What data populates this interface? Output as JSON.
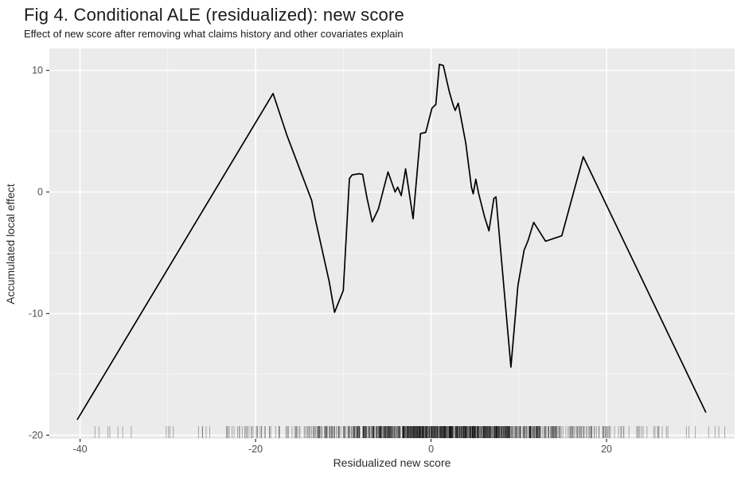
{
  "header": {
    "title": "Fig 4. Conditional ALE (residualized): new score",
    "subtitle": "Effect of new score after removing what claims history and other covariates explain"
  },
  "style": {
    "panel_bg": "#EBEBEB",
    "grid_major": "#FFFFFF",
    "grid_minor": "#F5F5F5",
    "tick_mark_color": "#333333",
    "tick_label_color": "#4D4D4D",
    "axis_title_color": "#2B2B2B",
    "line_color": "#000000",
    "rug_color": "#000000"
  },
  "chart_data": {
    "type": "line",
    "title": "Fig 4. Conditional ALE (residualized): new score",
    "subtitle": "Effect of new score after removing what claims history and other covariates explain",
    "xlabel": "Residualized new score",
    "ylabel": "Accumulated local effect",
    "xlim": [
      -43.5,
      34.6
    ],
    "ylim": [
      -20.3,
      11.8
    ],
    "grid": true,
    "legend_position": "none",
    "x_ticks": [
      {
        "v": -40,
        "label": "-40"
      },
      {
        "v": -20,
        "label": "-20"
      },
      {
        "v": 0,
        "label": "0"
      },
      {
        "v": 20,
        "label": "20"
      }
    ],
    "y_ticks": [
      {
        "v": 10,
        "label": "10"
      },
      {
        "v": 0,
        "label": "0"
      },
      {
        "v": -10,
        "label": "-10"
      },
      {
        "v": -20,
        "label": "-20"
      }
    ],
    "x_minor_ticks": [
      -30,
      -10,
      10,
      30
    ],
    "y_minor_ticks": [
      5,
      -5,
      -15
    ],
    "series": [
      {
        "name": "accumulated-local-effect",
        "points": [
          [
            -40.3,
            -18.7
          ],
          [
            -18.0,
            8.1
          ],
          [
            -16.4,
            4.6
          ],
          [
            -13.6,
            -0.7
          ],
          [
            -13.2,
            -2.2
          ],
          [
            -11.6,
            -7.4
          ],
          [
            -11.0,
            -9.9
          ],
          [
            -10.0,
            -8.1
          ],
          [
            -9.3,
            1.1
          ],
          [
            -9.0,
            1.4
          ],
          [
            -8.2,
            1.5
          ],
          [
            -7.8,
            1.45
          ],
          [
            -7.3,
            -0.5
          ],
          [
            -6.7,
            -2.45
          ],
          [
            -6.0,
            -1.4
          ],
          [
            -4.9,
            1.65
          ],
          [
            -4.1,
            0.0
          ],
          [
            -3.8,
            0.4
          ],
          [
            -3.4,
            -0.3
          ],
          [
            -2.9,
            1.9
          ],
          [
            -2.05,
            -2.2
          ],
          [
            -1.2,
            4.8
          ],
          [
            -0.6,
            4.9
          ],
          [
            0.1,
            6.9
          ],
          [
            0.55,
            7.2
          ],
          [
            0.95,
            10.5
          ],
          [
            1.4,
            10.4
          ],
          [
            1.85,
            8.95
          ],
          [
            2.1,
            8.2
          ],
          [
            2.5,
            7.2
          ],
          [
            2.75,
            6.7
          ],
          [
            3.1,
            7.3
          ],
          [
            3.95,
            4.05
          ],
          [
            4.6,
            0.4
          ],
          [
            4.8,
            -0.15
          ],
          [
            5.1,
            1.05
          ],
          [
            5.4,
            -0.05
          ],
          [
            6.1,
            -2.05
          ],
          [
            6.6,
            -3.2
          ],
          [
            7.15,
            -0.55
          ],
          [
            7.4,
            -0.4
          ],
          [
            9.1,
            -14.4
          ],
          [
            9.9,
            -7.7
          ],
          [
            10.6,
            -4.8
          ],
          [
            11.05,
            -4.0
          ],
          [
            11.7,
            -2.5
          ],
          [
            13.05,
            -4.05
          ],
          [
            14.9,
            -3.6
          ],
          [
            17.35,
            2.9
          ],
          [
            31.3,
            -18.1
          ]
        ]
      }
    ],
    "rug": {
      "opacity": 0.3,
      "bands": [
        {
          "from": -38.5,
          "to": -31.0,
          "count": 7
        },
        {
          "from": -31.0,
          "to": -22.0,
          "count": 16
        },
        {
          "from": -22.0,
          "to": -14.0,
          "count": 42
        },
        {
          "from": -14.0,
          "to": -9.0,
          "count": 65
        },
        {
          "from": -9.0,
          "to": -3.5,
          "count": 150
        },
        {
          "from": -3.5,
          "to": 3.0,
          "count": 280
        },
        {
          "from": 3.0,
          "to": 9.0,
          "count": 250
        },
        {
          "from": 9.0,
          "to": 14.5,
          "count": 110
        },
        {
          "from": 14.5,
          "to": 20.5,
          "count": 55
        },
        {
          "from": 20.5,
          "to": 27.0,
          "count": 22
        },
        {
          "from": 27.0,
          "to": 33.5,
          "count": 7
        }
      ]
    }
  }
}
